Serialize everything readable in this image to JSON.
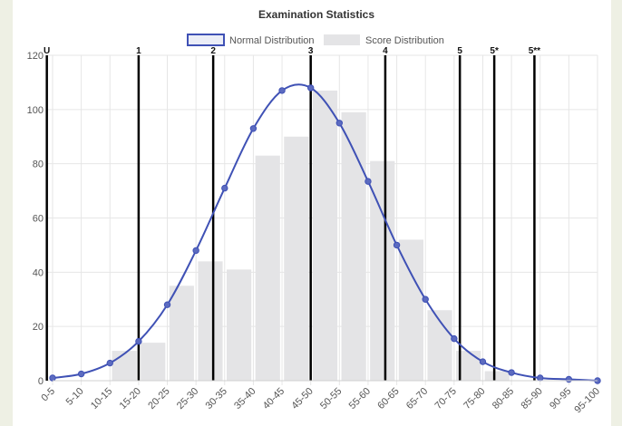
{
  "chart_data": {
    "type": "bar",
    "title": "Examination Statistics",
    "categories": [
      "0-5",
      "5-10",
      "10-15",
      "15-20",
      "20-25",
      "25-30",
      "30-35",
      "35-40",
      "40-45",
      "45-50",
      "50-55",
      "55-60",
      "60-65",
      "65-70",
      "70-75",
      "75-80",
      "80-85",
      "85-90",
      "90-95",
      "95-100"
    ],
    "series": [
      {
        "name": "Normal Distribution",
        "kind": "line",
        "color": "#3f51b5",
        "values": [
          1,
          2.5,
          6.5,
          14.5,
          28,
          48,
          71,
          93,
          107,
          108,
          95,
          73.5,
          50,
          30,
          15.5,
          7,
          3,
          1,
          0.5,
          0
        ]
      },
      {
        "name": "Score Distribution",
        "kind": "bar",
        "color": "#e4e4e6",
        "values": [
          0,
          0,
          11,
          14,
          35,
          44,
          41,
          83,
          90,
          107,
          99,
          81,
          52,
          26,
          11,
          3.5,
          0,
          0,
          0,
          0
        ]
      }
    ],
    "ylim": [
      0,
      120
    ],
    "yticks": [
      0,
      20,
      40,
      60,
      80,
      100,
      120
    ],
    "grid": true,
    "legend": "top-center",
    "grade_lines": [
      {
        "label": "U",
        "value": 1.5
      },
      {
        "label": "1",
        "value": 17.5
      },
      {
        "label": "2",
        "value": 30.5
      },
      {
        "label": "3",
        "value": 47.5
      },
      {
        "label": "4",
        "value": 60.5
      },
      {
        "label": "5",
        "value": 73.5
      },
      {
        "label": "5*",
        "value": 79.5
      },
      {
        "label": "5**",
        "value": 86.5
      }
    ]
  }
}
